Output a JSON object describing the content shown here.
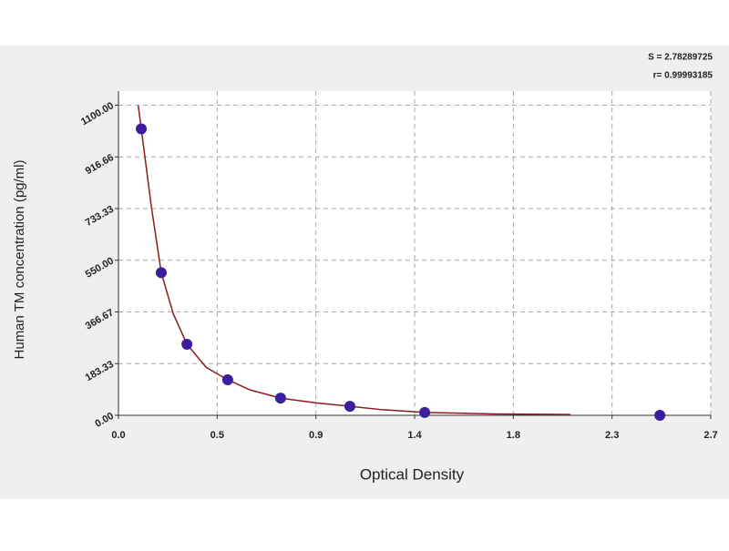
{
  "chart_data": {
    "type": "scatter",
    "x_label": "Optical Density",
    "y_label": "Human TM concentration (pg/ml)",
    "annotations": [
      "S = 2.78289725",
      "r= 0.99993185"
    ],
    "xlim": [
      0,
      2.7
    ],
    "ylim": [
      0,
      1150
    ],
    "xticks": [
      {
        "value": 0,
        "label": "0.0"
      },
      {
        "value": 0.45,
        "label": "0.5"
      },
      {
        "value": 0.9,
        "label": "0.9"
      },
      {
        "value": 1.35,
        "label": "1.4"
      },
      {
        "value": 1.8,
        "label": "1.8"
      },
      {
        "value": 2.25,
        "label": "2.3"
      },
      {
        "value": 2.7,
        "label": "2.7"
      }
    ],
    "yticks": [
      {
        "value": 0,
        "label": "0.00"
      },
      {
        "value": 183.33,
        "label": "183.33"
      },
      {
        "value": 366.67,
        "label": "366.67"
      },
      {
        "value": 550,
        "label": "550.00"
      },
      {
        "value": 733.33,
        "label": "733.33"
      },
      {
        "value": 916.66,
        "label": "916.66"
      },
      {
        "value": 1100,
        "label": "1100.00"
      }
    ],
    "grid": true,
    "series": [
      {
        "kind": "points",
        "color": "#3b1e9e",
        "x": [
          0.104,
          0.195,
          0.312,
          0.498,
          0.739,
          1.055,
          1.396,
          2.468
        ],
        "values": [
          1016,
          506,
          252,
          126,
          61,
          32,
          10,
          0
        ]
      },
      {
        "kind": "line",
        "color": "#8b1c1c",
        "x": [
          0.09,
          0.104,
          0.15,
          0.195,
          0.25,
          0.312,
          0.4,
          0.498,
          0.6,
          0.739,
          0.9,
          1.055,
          1.2,
          1.396,
          1.7,
          2.06
        ],
        "values": [
          1100,
          1016,
          740,
          506,
          360,
          252,
          170,
          126,
          90,
          61,
          44,
          32,
          20,
          10,
          5,
          3
        ]
      }
    ]
  }
}
